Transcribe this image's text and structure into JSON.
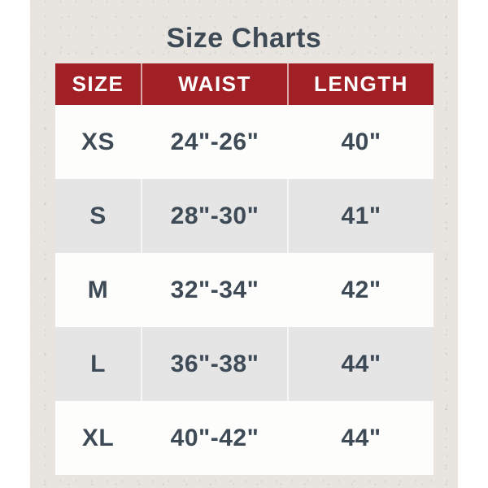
{
  "page": {
    "title": "Size Charts"
  },
  "table": {
    "columns": [
      "SIZE",
      "WAIST",
      "LENGTH"
    ],
    "rows": [
      {
        "size": "XS",
        "waist": "24\"-26\"",
        "length": "40\""
      },
      {
        "size": "S",
        "waist": "28\"-30\"",
        "length": "41\""
      },
      {
        "size": "M",
        "waist": "32\"-34\"",
        "length": "42\""
      },
      {
        "size": "L",
        "waist": "36\"-38\"",
        "length": "44\""
      },
      {
        "size": "XL",
        "waist": "40\"-42\"",
        "length": "44\""
      }
    ]
  },
  "colors": {
    "page_background": "#FFFFFF",
    "paper_background": "#E8E5E0",
    "header_background": "#A02025",
    "header_text": "#FFFFFF",
    "body_text": "#3E4A55",
    "row_light": "#FDFDFC",
    "row_shaded": "#E5E5E5",
    "column_divider": "rgba(255,255,255,0.6)"
  },
  "chart_data": {
    "type": "table",
    "title": "Size Charts",
    "columns": [
      "SIZE",
      "WAIST",
      "LENGTH"
    ],
    "rows": [
      [
        "XS",
        "24\"-26\"",
        "40\""
      ],
      [
        "S",
        "28\"-30\"",
        "41\""
      ],
      [
        "M",
        "32\"-34\"",
        "42\""
      ],
      [
        "L",
        "36\"-38\"",
        "44\""
      ],
      [
        "XL",
        "40\"-42\"",
        "44\""
      ]
    ]
  }
}
